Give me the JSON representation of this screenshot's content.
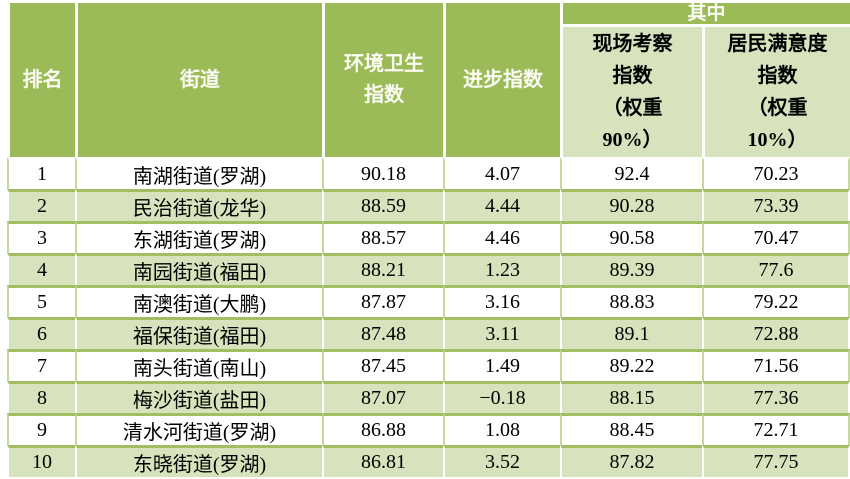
{
  "colors": {
    "header_green": "#9bbb59",
    "stripe_light_green": "#d6e3bc",
    "row_border_green": "#a3be62",
    "cell_border_light_green": "#c6d89e",
    "header_text": "#fbfcf3",
    "body_text": "#000000"
  },
  "table": {
    "header": {
      "rank": "排名",
      "street": "街道",
      "env_index": "环境卫生\n指数",
      "progress_index": "进步指数",
      "among": "其中",
      "field_index": "现场考察\n指数\n（权重\n90%）",
      "satisfaction_index": "居民满意度\n指数\n（权重\n10%）"
    },
    "columns_keys": [
      "rank",
      "street",
      "env",
      "progress",
      "field",
      "satisfaction"
    ],
    "rows": [
      {
        "rank": "1",
        "street": "南湖街道(罗湖)",
        "env": "90.18",
        "progress": "4.07",
        "field": "92.4",
        "satisfaction": "70.23"
      },
      {
        "rank": "2",
        "street": "民治街道(龙华)",
        "env": "88.59",
        "progress": "4.44",
        "field": "90.28",
        "satisfaction": "73.39"
      },
      {
        "rank": "3",
        "street": "东湖街道(罗湖)",
        "env": "88.57",
        "progress": "4.46",
        "field": "90.58",
        "satisfaction": "70.47"
      },
      {
        "rank": "4",
        "street": "南园街道(福田)",
        "env": "88.21",
        "progress": "1.23",
        "field": "89.39",
        "satisfaction": "77.6"
      },
      {
        "rank": "5",
        "street": "南澳街道(大鹏)",
        "env": "87.87",
        "progress": "3.16",
        "field": "88.83",
        "satisfaction": "79.22"
      },
      {
        "rank": "6",
        "street": "福保街道(福田)",
        "env": "87.48",
        "progress": "3.11",
        "field": "89.1",
        "satisfaction": "72.88"
      },
      {
        "rank": "7",
        "street": "南头街道(南山)",
        "env": "87.45",
        "progress": "1.49",
        "field": "89.22",
        "satisfaction": "71.56"
      },
      {
        "rank": "8",
        "street": "梅沙街道(盐田)",
        "env": "87.07",
        "progress": "−0.18",
        "field": "88.15",
        "satisfaction": "77.36"
      },
      {
        "rank": "9",
        "street": "清水河街道(罗湖)",
        "env": "86.88",
        "progress": "1.08",
        "field": "88.45",
        "satisfaction": "72.71"
      },
      {
        "rank": "10",
        "street": "东晓街道(罗湖)",
        "env": "86.81",
        "progress": "3.52",
        "field": "87.82",
        "satisfaction": "77.75"
      }
    ]
  },
  "chart_data": {
    "type": "table",
    "title": "",
    "columns": [
      "排名",
      "街道",
      "环境卫生指数",
      "进步指数",
      "现场考察指数（权重90%）",
      "居民满意度指数（权重10%）"
    ],
    "rows": [
      [
        "1",
        "南湖街道(罗湖)",
        90.18,
        4.07,
        92.4,
        70.23
      ],
      [
        "2",
        "民治街道(龙华)",
        88.59,
        4.44,
        90.28,
        73.39
      ],
      [
        "3",
        "东湖街道(罗湖)",
        88.57,
        4.46,
        90.58,
        70.47
      ],
      [
        "4",
        "南园街道(福田)",
        88.21,
        1.23,
        89.39,
        77.6
      ],
      [
        "5",
        "南澳街道(大鹏)",
        87.87,
        3.16,
        88.83,
        79.22
      ],
      [
        "6",
        "福保街道(福田)",
        87.48,
        3.11,
        89.1,
        72.88
      ],
      [
        "7",
        "南头街道(南山)",
        87.45,
        1.49,
        89.22,
        71.56
      ],
      [
        "8",
        "梅沙街道(盐田)",
        87.07,
        -0.18,
        88.15,
        77.36
      ],
      [
        "9",
        "清水河街道(罗湖)",
        86.88,
        1.08,
        88.45,
        72.71
      ],
      [
        "10",
        "东晓街道(罗湖)",
        86.81,
        3.52,
        87.82,
        77.75
      ]
    ]
  }
}
